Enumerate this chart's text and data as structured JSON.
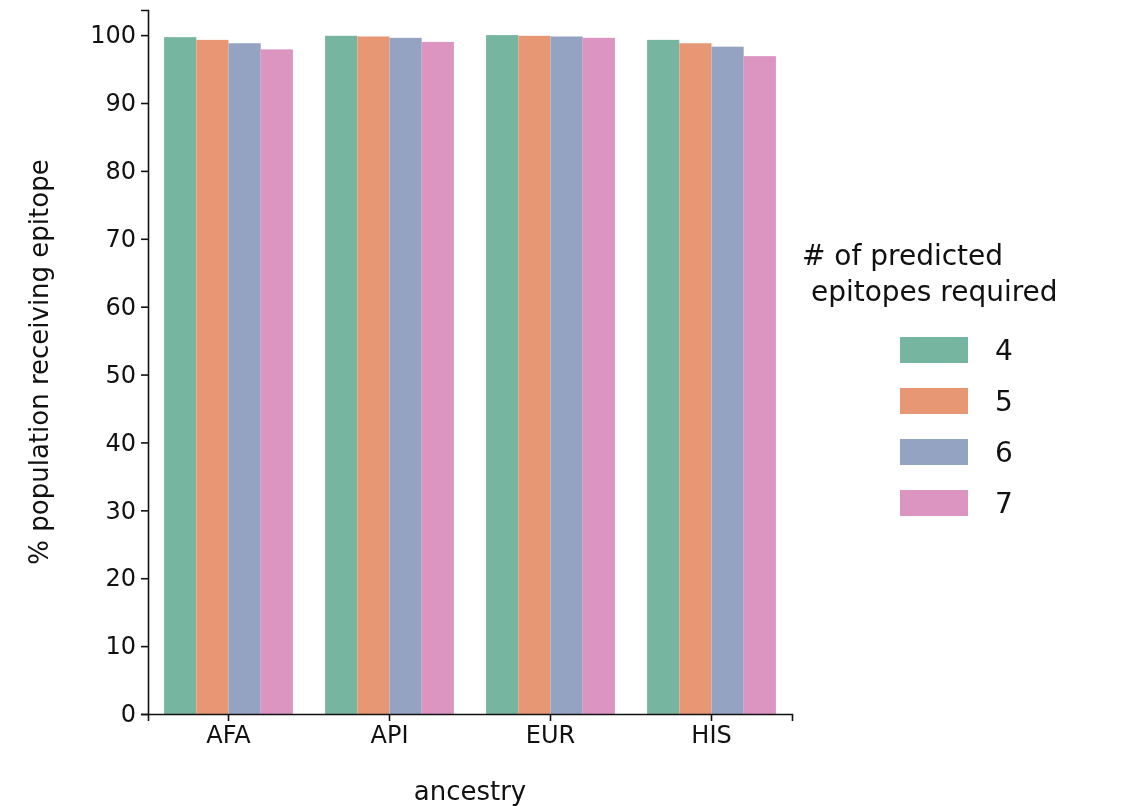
{
  "chart_data": {
    "type": "bar",
    "xlabel": "ancestry",
    "ylabel": "% population receiving epitope",
    "legend_title": "# of predicted\n epitopes required",
    "legend": "right",
    "categories": [
      "AFA",
      "API",
      "EUR",
      "HIS"
    ],
    "series": [
      {
        "name": "4",
        "color": "#76b5a0",
        "values": [
          99.7,
          99.9,
          100.0,
          99.3
        ]
      },
      {
        "name": "5",
        "color": "#e79774",
        "values": [
          99.3,
          99.8,
          99.9,
          98.8
        ]
      },
      {
        "name": "6",
        "color": "#95a3c3",
        "values": [
          98.8,
          99.6,
          99.8,
          98.3
        ]
      },
      {
        "name": "7",
        "color": "#db95c0",
        "values": [
          97.9,
          99.0,
          99.6,
          96.9
        ]
      }
    ],
    "ylim": [
      0,
      103.7
    ],
    "yticks": [
      0,
      10,
      20,
      30,
      40,
      50,
      60,
      70,
      80,
      90,
      100
    ],
    "grid": false
  }
}
